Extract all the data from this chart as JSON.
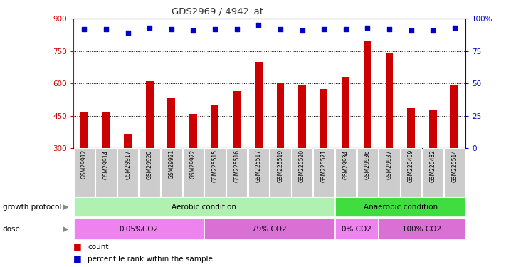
{
  "title": "GDS2969 / 4942_at",
  "samples": [
    "GSM29912",
    "GSM29914",
    "GSM29917",
    "GSM29920",
    "GSM29921",
    "GSM29922",
    "GSM225515",
    "GSM225516",
    "GSM225517",
    "GSM225519",
    "GSM225520",
    "GSM225521",
    "GSM29934",
    "GSM29936",
    "GSM29937",
    "GSM225469",
    "GSM225482",
    "GSM225514"
  ],
  "counts": [
    470,
    470,
    365,
    610,
    530,
    460,
    500,
    565,
    700,
    600,
    590,
    575,
    630,
    800,
    740,
    490,
    475,
    590
  ],
  "percentile": [
    92,
    92,
    89,
    93,
    92,
    91,
    92,
    92,
    95,
    92,
    91,
    92,
    92,
    93,
    92,
    91,
    91,
    93
  ],
  "bar_color": "#cc0000",
  "dot_color": "#0000cc",
  "ymin": 300,
  "ymax": 900,
  "yticks": [
    300,
    450,
    600,
    750,
    900
  ],
  "y2min": 0,
  "y2max": 100,
  "y2ticks": [
    0,
    25,
    50,
    75,
    100
  ],
  "grid_values": [
    450,
    600,
    750
  ],
  "dose_groups": [
    {
      "label": "0.05%CO2",
      "start": 0,
      "end": 5,
      "color": "#ee82ee"
    },
    {
      "label": "79% CO2",
      "start": 6,
      "end": 11,
      "color": "#da70d6"
    },
    {
      "label": "0% CO2",
      "start": 12,
      "end": 13,
      "color": "#ee82ee"
    },
    {
      "label": "100% CO2",
      "start": 14,
      "end": 17,
      "color": "#da70d6"
    }
  ],
  "growth_aerobic_label": "Aerobic condition",
  "growth_anaerobic_label": "Anaerobic condition",
  "aerobic_color": "#b0f0b0",
  "anaerobic_color": "#40dd40",
  "protocol_label": "growth protocol",
  "dose_label": "dose",
  "legend_count": "count",
  "legend_pct": "percentile rank within the sample",
  "title_color": "#333333",
  "left_axis_color": "#cc0000",
  "right_axis_color": "#0000cc",
  "bar_width": 0.35,
  "xlabel_fontsize": 5.5,
  "tick_fontsize": 7.5,
  "annotation_fontsize": 7.5
}
